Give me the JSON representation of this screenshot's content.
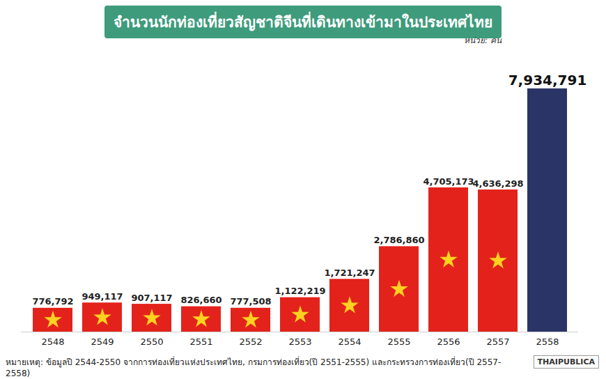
{
  "chart_data": {
    "type": "bar",
    "title": "จำนวนนักท่องเที่ยวสัญชาติจีนที่เดินทางเข้ามาในประเทศไทย",
    "subtitle": "หน่วย: คน",
    "caption": "หมายเหตุ: ข้อมูลปี 2544-2550 จากการท่องเที่ยวแห่งประเทศไทย, กรมการท่องเที่ยว(ปี 2551-2555) และกระทรวงการท่องเที่ยว(ปี 2557-2558)",
    "annotations": [
      "THAIPUBLICA"
    ],
    "categories": [
      "2548",
      "2549",
      "2550",
      "2551",
      "2552",
      "2553",
      "2554",
      "2555",
      "2556",
      "2557",
      "2558"
    ],
    "values": [
      776792,
      949117,
      907117,
      826660,
      777508,
      1122219,
      1721247,
      2786860,
      4705173,
      4636298,
      7934791
    ],
    "value_labels": [
      "776,792",
      "949,117",
      "907,117",
      "826,660",
      "777,508",
      "1,122,219",
      "1,721,247",
      "2,786,860",
      "4,705,173",
      "4,636,298",
      "7,934,791"
    ],
    "colors": [
      "#e3231b",
      "#e3231b",
      "#e3231b",
      "#e3231b",
      "#e3231b",
      "#e3231b",
      "#e3231b",
      "#e3231b",
      "#e3231b",
      "#e3231b",
      "#2b3466"
    ],
    "ylim": [
      0,
      8500000
    ],
    "data_labels": true,
    "tick_labels": "x",
    "grid": false
  }
}
